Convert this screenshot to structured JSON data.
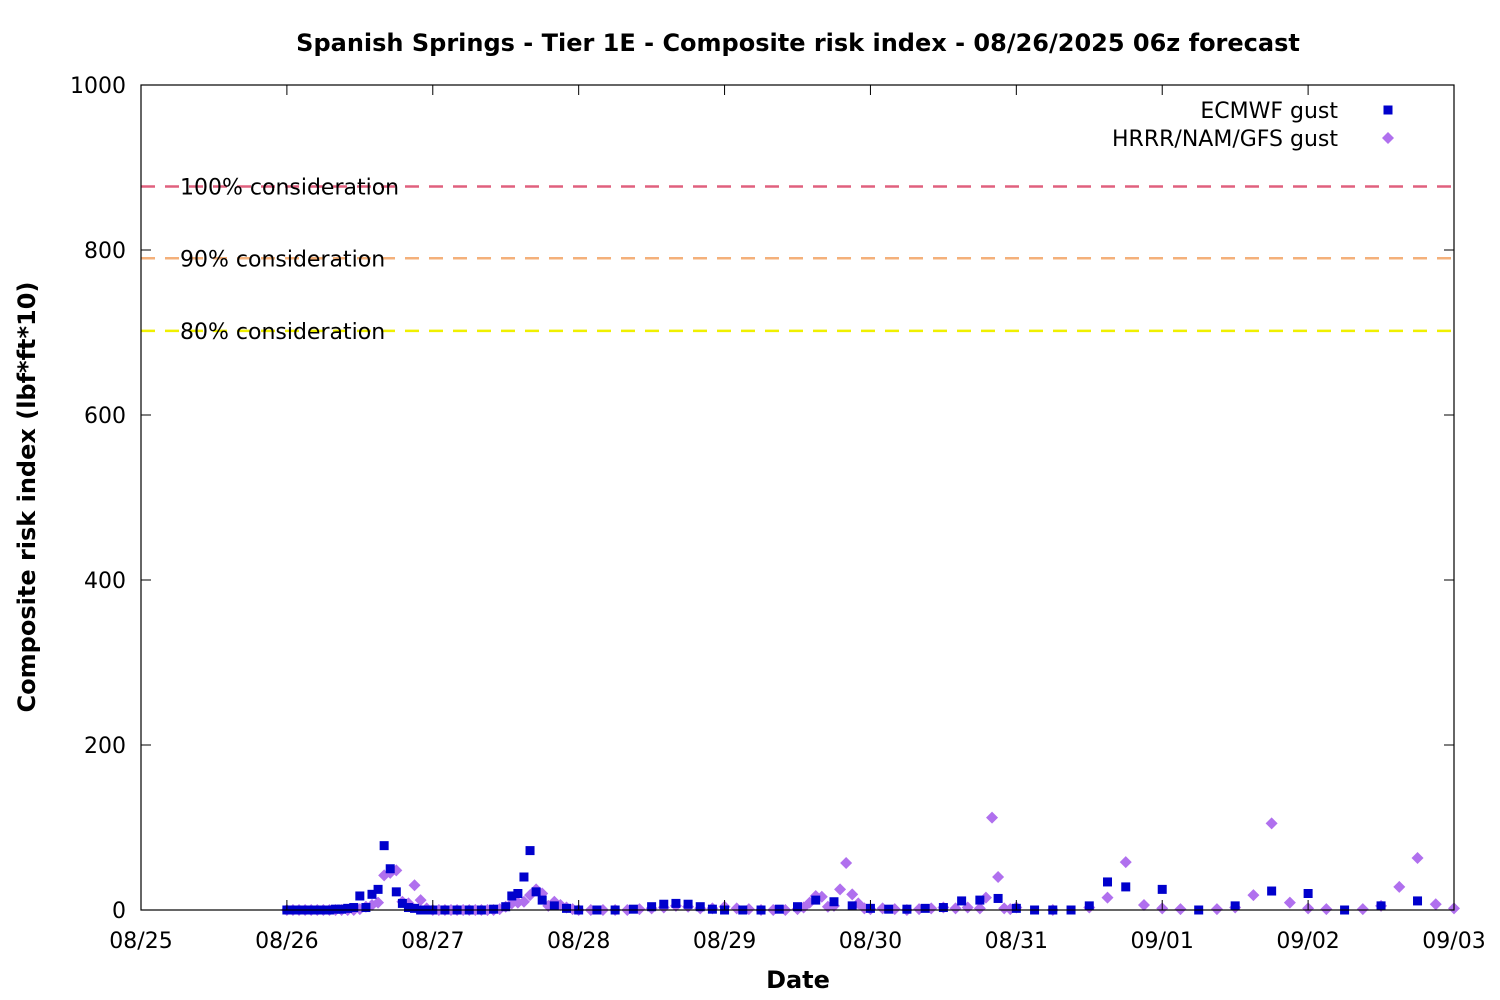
{
  "chart_data": {
    "type": "scatter",
    "title": "Spanish Springs - Tier 1E - Composite risk index - 08/26/2025 06z forecast",
    "xlabel": "Date",
    "ylabel": "Composite risk index (lbf*ft*10)",
    "xlim": [
      "2025-08-25 00:00",
      "2025-09-03 00:00"
    ],
    "ylim": [
      0,
      1000
    ],
    "x_ticks": [
      "08/25",
      "08/26",
      "08/27",
      "08/28",
      "08/29",
      "08/30",
      "08/31",
      "09/01",
      "09/02",
      "09/03"
    ],
    "y_ticks": [
      0,
      200,
      400,
      600,
      800,
      1000
    ],
    "grid": false,
    "legend_position": "top-right",
    "reference_lines": [
      {
        "label": "100% consideration",
        "value": 877,
        "color": "#e0607e"
      },
      {
        "label": "90% consideration",
        "value": 790,
        "color": "#f4b07a"
      },
      {
        "label": "80% consideration",
        "value": 702,
        "color": "#f0f000"
      }
    ],
    "series": [
      {
        "name": "ECMWF gust",
        "color": "#0000cc",
        "marker": "square",
        "points": [
          [
            "2025-08-26 00:00",
            0
          ],
          [
            "2025-08-26 01:00",
            0
          ],
          [
            "2025-08-26 02:00",
            0
          ],
          [
            "2025-08-26 03:00",
            0
          ],
          [
            "2025-08-26 04:00",
            0
          ],
          [
            "2025-08-26 05:00",
            0
          ],
          [
            "2025-08-26 06:00",
            0
          ],
          [
            "2025-08-26 07:00",
            0
          ],
          [
            "2025-08-26 08:00",
            1
          ],
          [
            "2025-08-26 09:00",
            1
          ],
          [
            "2025-08-26 10:00",
            2
          ],
          [
            "2025-08-26 11:00",
            3
          ],
          [
            "2025-08-26 12:00",
            17
          ],
          [
            "2025-08-26 13:00",
            3
          ],
          [
            "2025-08-26 14:00",
            19
          ],
          [
            "2025-08-26 15:00",
            25
          ],
          [
            "2025-08-26 16:00",
            78
          ],
          [
            "2025-08-26 17:00",
            50
          ],
          [
            "2025-08-26 18:00",
            22
          ],
          [
            "2025-08-26 19:00",
            8
          ],
          [
            "2025-08-26 20:00",
            3
          ],
          [
            "2025-08-26 21:00",
            2
          ],
          [
            "2025-08-26 22:00",
            0
          ],
          [
            "2025-08-26 23:00",
            0
          ],
          [
            "2025-08-27 00:00",
            0
          ],
          [
            "2025-08-27 02:00",
            0
          ],
          [
            "2025-08-27 04:00",
            0
          ],
          [
            "2025-08-27 06:00",
            0
          ],
          [
            "2025-08-27 08:00",
            0
          ],
          [
            "2025-08-27 10:00",
            1
          ],
          [
            "2025-08-27 12:00",
            4
          ],
          [
            "2025-08-27 13:00",
            17
          ],
          [
            "2025-08-27 14:00",
            20
          ],
          [
            "2025-08-27 15:00",
            40
          ],
          [
            "2025-08-27 16:00",
            72
          ],
          [
            "2025-08-27 17:00",
            22
          ],
          [
            "2025-08-27 18:00",
            12
          ],
          [
            "2025-08-27 20:00",
            5
          ],
          [
            "2025-08-27 22:00",
            2
          ],
          [
            "2025-08-28 00:00",
            0
          ],
          [
            "2025-08-28 03:00",
            0
          ],
          [
            "2025-08-28 06:00",
            0
          ],
          [
            "2025-08-28 09:00",
            1
          ],
          [
            "2025-08-28 12:00",
            4
          ],
          [
            "2025-08-28 14:00",
            7
          ],
          [
            "2025-08-28 16:00",
            8
          ],
          [
            "2025-08-28 18:00",
            7
          ],
          [
            "2025-08-28 20:00",
            4
          ],
          [
            "2025-08-28 22:00",
            1
          ],
          [
            "2025-08-29 00:00",
            0
          ],
          [
            "2025-08-29 03:00",
            0
          ],
          [
            "2025-08-29 06:00",
            0
          ],
          [
            "2025-08-29 09:00",
            1
          ],
          [
            "2025-08-29 12:00",
            4
          ],
          [
            "2025-08-29 15:00",
            12
          ],
          [
            "2025-08-29 18:00",
            10
          ],
          [
            "2025-08-29 21:00",
            5
          ],
          [
            "2025-08-30 00:00",
            2
          ],
          [
            "2025-08-30 03:00",
            1
          ],
          [
            "2025-08-30 06:00",
            1
          ],
          [
            "2025-08-30 09:00",
            2
          ],
          [
            "2025-08-30 12:00",
            3
          ],
          [
            "2025-08-30 15:00",
            11
          ],
          [
            "2025-08-30 18:00",
            12
          ],
          [
            "2025-08-30 21:00",
            14
          ],
          [
            "2025-08-31 00:00",
            2
          ],
          [
            "2025-08-31 03:00",
            0
          ],
          [
            "2025-08-31 06:00",
            0
          ],
          [
            "2025-08-31 09:00",
            0
          ],
          [
            "2025-08-31 12:00",
            5
          ],
          [
            "2025-08-31 15:00",
            34
          ],
          [
            "2025-08-31 18:00",
            28
          ],
          [
            "2025-09-01 00:00",
            25
          ],
          [
            "2025-09-01 06:00",
            0
          ],
          [
            "2025-09-01 12:00",
            5
          ],
          [
            "2025-09-01 18:00",
            23
          ],
          [
            "2025-09-02 00:00",
            20
          ],
          [
            "2025-09-02 06:00",
            0
          ],
          [
            "2025-09-02 12:00",
            5
          ],
          [
            "2025-09-02 18:00",
            11
          ]
        ]
      },
      {
        "name": "HRRR/NAM/GFS gust",
        "color": "#b070ee",
        "marker": "diamond",
        "points": [
          [
            "2025-08-26 00:00",
            0
          ],
          [
            "2025-08-26 01:00",
            0
          ],
          [
            "2025-08-26 02:00",
            0
          ],
          [
            "2025-08-26 03:00",
            0
          ],
          [
            "2025-08-26 04:00",
            0
          ],
          [
            "2025-08-26 05:00",
            0
          ],
          [
            "2025-08-26 06:00",
            0
          ],
          [
            "2025-08-26 07:00",
            0
          ],
          [
            "2025-08-26 08:00",
            0
          ],
          [
            "2025-08-26 09:00",
            0
          ],
          [
            "2025-08-26 10:00",
            0
          ],
          [
            "2025-08-26 11:00",
            0
          ],
          [
            "2025-08-26 12:00",
            1
          ],
          [
            "2025-08-26 13:00",
            4
          ],
          [
            "2025-08-26 14:00",
            6
          ],
          [
            "2025-08-26 15:00",
            9
          ],
          [
            "2025-08-26 16:00",
            42
          ],
          [
            "2025-08-26 17:00",
            45
          ],
          [
            "2025-08-26 18:00",
            48
          ],
          [
            "2025-08-26 19:00",
            10
          ],
          [
            "2025-08-26 20:00",
            8
          ],
          [
            "2025-08-26 21:00",
            30
          ],
          [
            "2025-08-26 22:00",
            12
          ],
          [
            "2025-08-26 23:00",
            2
          ],
          [
            "2025-08-27 00:00",
            0
          ],
          [
            "2025-08-27 01:00",
            0
          ],
          [
            "2025-08-27 02:00",
            0
          ],
          [
            "2025-08-27 03:00",
            0
          ],
          [
            "2025-08-27 04:00",
            0
          ],
          [
            "2025-08-27 05:00",
            0
          ],
          [
            "2025-08-27 06:00",
            0
          ],
          [
            "2025-08-27 07:00",
            0
          ],
          [
            "2025-08-27 08:00",
            0
          ],
          [
            "2025-08-27 09:00",
            0
          ],
          [
            "2025-08-27 10:00",
            0
          ],
          [
            "2025-08-27 11:00",
            1
          ],
          [
            "2025-08-27 12:00",
            4
          ],
          [
            "2025-08-27 13:00",
            8
          ],
          [
            "2025-08-27 14:00",
            9
          ],
          [
            "2025-08-27 15:00",
            10
          ],
          [
            "2025-08-27 16:00",
            18
          ],
          [
            "2025-08-27 17:00",
            25
          ],
          [
            "2025-08-27 18:00",
            20
          ],
          [
            "2025-08-27 19:00",
            5
          ],
          [
            "2025-08-27 20:00",
            10
          ],
          [
            "2025-08-27 21:00",
            6
          ],
          [
            "2025-08-27 22:00",
            3
          ],
          [
            "2025-08-27 23:00",
            1
          ],
          [
            "2025-08-28 00:00",
            0
          ],
          [
            "2025-08-28 02:00",
            0
          ],
          [
            "2025-08-28 04:00",
            0
          ],
          [
            "2025-08-28 06:00",
            0
          ],
          [
            "2025-08-28 08:00",
            0
          ],
          [
            "2025-08-28 10:00",
            1
          ],
          [
            "2025-08-28 12:00",
            2
          ],
          [
            "2025-08-28 14:00",
            3
          ],
          [
            "2025-08-28 16:00",
            5
          ],
          [
            "2025-08-28 18:00",
            4
          ],
          [
            "2025-08-28 20:00",
            2
          ],
          [
            "2025-08-28 22:00",
            2
          ],
          [
            "2025-08-29 00:00",
            4
          ],
          [
            "2025-08-29 02:00",
            2
          ],
          [
            "2025-08-29 04:00",
            1
          ],
          [
            "2025-08-29 06:00",
            0
          ],
          [
            "2025-08-29 08:00",
            0
          ],
          [
            "2025-08-29 10:00",
            0
          ],
          [
            "2025-08-29 12:00",
            1
          ],
          [
            "2025-08-29 13:00",
            3
          ],
          [
            "2025-08-29 14:00",
            9
          ],
          [
            "2025-08-29 15:00",
            17
          ],
          [
            "2025-08-29 16:00",
            16
          ],
          [
            "2025-08-29 17:00",
            4
          ],
          [
            "2025-08-29 18:00",
            5
          ],
          [
            "2025-08-29 19:00",
            25
          ],
          [
            "2025-08-29 20:00",
            57
          ],
          [
            "2025-08-29 21:00",
            19
          ],
          [
            "2025-08-29 22:00",
            8
          ],
          [
            "2025-08-29 23:00",
            2
          ],
          [
            "2025-08-30 00:00",
            1
          ],
          [
            "2025-08-30 02:00",
            2
          ],
          [
            "2025-08-30 04:00",
            1
          ],
          [
            "2025-08-30 06:00",
            0
          ],
          [
            "2025-08-30 08:00",
            1
          ],
          [
            "2025-08-30 10:00",
            2
          ],
          [
            "2025-08-30 12:00",
            3
          ],
          [
            "2025-08-30 14:00",
            2
          ],
          [
            "2025-08-30 16:00",
            3
          ],
          [
            "2025-08-30 18:00",
            2
          ],
          [
            "2025-08-30 19:00",
            15
          ],
          [
            "2025-08-30 20:00",
            112
          ],
          [
            "2025-08-30 21:00",
            40
          ],
          [
            "2025-08-30 22:00",
            2
          ],
          [
            "2025-08-30 23:00",
            1
          ],
          [
            "2025-08-31 00:00",
            3
          ],
          [
            "2025-08-31 06:00",
            0
          ],
          [
            "2025-08-31 12:00",
            3
          ],
          [
            "2025-08-31 15:00",
            15
          ],
          [
            "2025-08-31 18:00",
            58
          ],
          [
            "2025-08-31 21:00",
            6
          ],
          [
            "2025-09-01 00:00",
            2
          ],
          [
            "2025-09-01 03:00",
            1
          ],
          [
            "2025-09-01 09:00",
            1
          ],
          [
            "2025-09-01 12:00",
            3
          ],
          [
            "2025-09-01 15:00",
            18
          ],
          [
            "2025-09-01 18:00",
            105
          ],
          [
            "2025-09-01 21:00",
            9
          ],
          [
            "2025-09-02 00:00",
            2
          ],
          [
            "2025-09-02 03:00",
            1
          ],
          [
            "2025-09-02 09:00",
            1
          ],
          [
            "2025-09-02 12:00",
            5
          ],
          [
            "2025-09-02 15:00",
            28
          ],
          [
            "2025-09-02 18:00",
            63
          ],
          [
            "2025-09-02 21:00",
            7
          ],
          [
            "2025-09-03 00:00",
            2
          ]
        ]
      }
    ]
  }
}
